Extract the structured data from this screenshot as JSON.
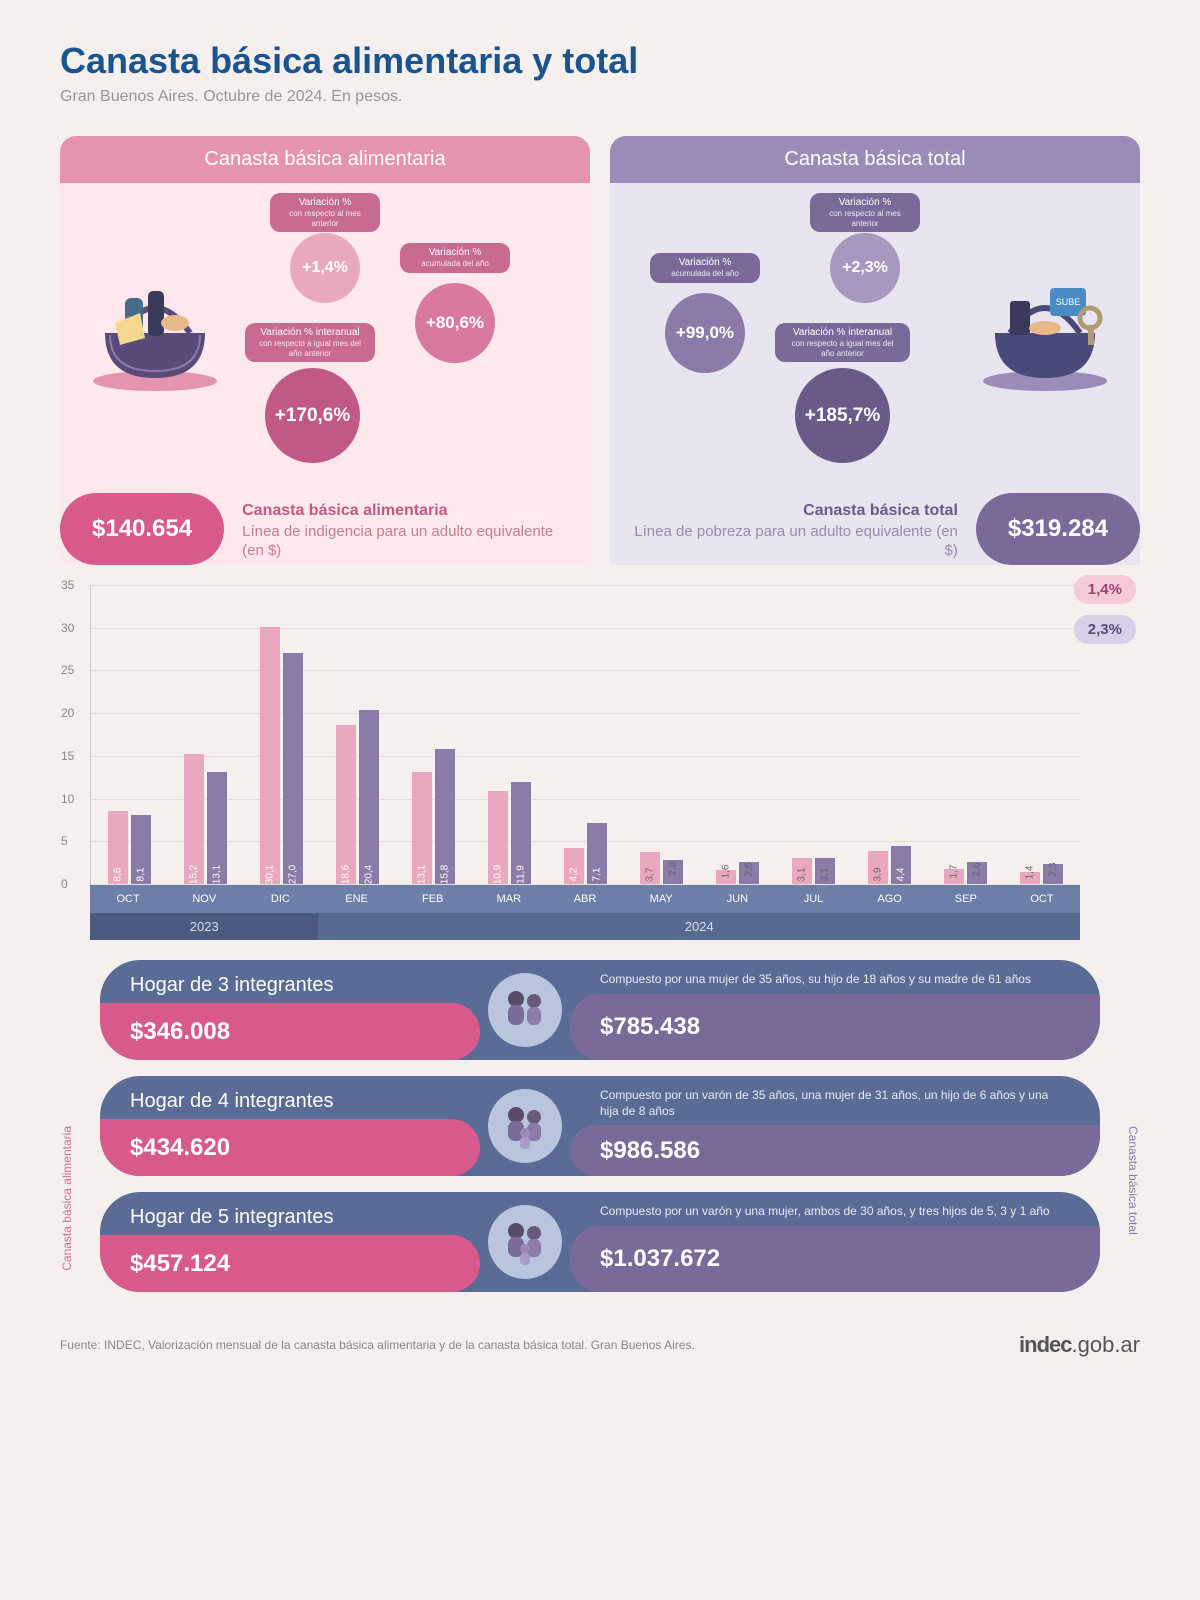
{
  "title": "Canasta básica alimentaria y total",
  "subtitle": "Gran Buenos Aires. Octubre de 2024. En pesos.",
  "colors": {
    "pink_primary": "#d85a8a",
    "pink_light": "#e9a8bf",
    "pink_bg": "#fde8ee",
    "purple_primary": "#7a6a9a",
    "purple_light": "#8a7ba8",
    "purple_bg": "#e8e4f0",
    "blue_header": "#1a5490",
    "axis_bg": "#6b7fa8",
    "year_bg": "#4a5a80"
  },
  "panel_cba": {
    "header": "Canasta básica alimentaria",
    "var_mensual": {
      "label": "Variación %",
      "sub": "con respecto al mes anterior",
      "value": "+1,4%"
    },
    "var_acum": {
      "label": "Variación %",
      "sub": "acumulada del año",
      "value": "+80,6%"
    },
    "var_inter": {
      "label": "Variación % interanual",
      "sub": "con respecto a igual mes del año anterior",
      "value": "+170,6%"
    },
    "amount": "$140.654",
    "desc_title": "Canasta básica alimentaria",
    "desc_sub": "Línea de indigencia para un adulto equivalente (en $)"
  },
  "panel_cbt": {
    "header": "Canasta básica total",
    "var_mensual": {
      "label": "Variación %",
      "sub": "con respecto al mes anterior",
      "value": "+2,3%"
    },
    "var_acum": {
      "label": "Variación %",
      "sub": "acumulada del año",
      "value": "+99,0%"
    },
    "var_inter": {
      "label": "Variación % interanual",
      "sub": "con respecto a igual mes del año anterior",
      "value": "+185,7%"
    },
    "amount": "$319.284",
    "desc_title": "Canasta básica total",
    "desc_sub": "Línea de pobreza para un adulto equivalente (en $)"
  },
  "chart": {
    "type": "bar",
    "ylim": [
      0,
      35
    ],
    "ytick_step": 5,
    "series_colors": {
      "cba": "#e9a8bf",
      "cbt": "#8a7ba8"
    },
    "months": [
      {
        "label": "OCT",
        "year": "2023",
        "cba": 8.6,
        "cbt": 8.1
      },
      {
        "label": "NOV",
        "year": "2023",
        "cba": 15.2,
        "cbt": 13.1
      },
      {
        "label": "DIC",
        "year": "2023",
        "cba": 30.1,
        "cbt": 27.0
      },
      {
        "label": "ENE",
        "year": "2024",
        "cba": 18.6,
        "cbt": 20.4
      },
      {
        "label": "FEB",
        "year": "2024",
        "cba": 13.1,
        "cbt": 15.8
      },
      {
        "label": "MAR",
        "year": "2024",
        "cba": 10.9,
        "cbt": 11.9
      },
      {
        "label": "ABR",
        "year": "2024",
        "cba": 4.2,
        "cbt": 7.1
      },
      {
        "label": "MAY",
        "year": "2024",
        "cba": 3.7,
        "cbt": 2.8
      },
      {
        "label": "JUN",
        "year": "2024",
        "cba": 1.6,
        "cbt": 2.6
      },
      {
        "label": "JUL",
        "year": "2024",
        "cba": 3.1,
        "cbt": 3.1
      },
      {
        "label": "AGO",
        "year": "2024",
        "cba": 3.9,
        "cbt": 4.4
      },
      {
        "label": "SEP",
        "year": "2024",
        "cba": 1.7,
        "cbt": 2.6
      },
      {
        "label": "OCT",
        "year": "2024",
        "cba": 1.4,
        "cbt": 2.3
      }
    ],
    "callout_cba": "1,4%",
    "callout_cbt": "2,3%",
    "year_labels": {
      "y2023": "2023",
      "y2024": "2024"
    }
  },
  "side_label_left": "Canasta básica alimentaria",
  "side_label_right": "Canasta básica total",
  "households": [
    {
      "title": "Hogar de 3 integrantes",
      "desc": "Compuesto por una mujer de 35 años, su hijo de 18 años y su madre de 61 años",
      "cba": "$346.008",
      "cbt": "$785.438"
    },
    {
      "title": "Hogar de 4 integrantes",
      "desc": "Compuesto por un varón de 35 años, una mujer de 31 años, un hijo de 6 años y una hija de 8 años",
      "cba": "$434.620",
      "cbt": "$986.586"
    },
    {
      "title": "Hogar de 5 integrantes",
      "desc": "Compuesto por un varón y una mujer, ambos de 30 años, y tres hijos de 5, 3 y 1 año",
      "cba": "$457.124",
      "cbt": "$1.037.672"
    }
  ],
  "footer_source": "Fuente: INDEC, Valorización mensual de la canasta básica alimentaria y de la canasta básica total. Gran Buenos Aires.",
  "footer_logo": "indec",
  "footer_logo_suffix": ".gob.ar"
}
